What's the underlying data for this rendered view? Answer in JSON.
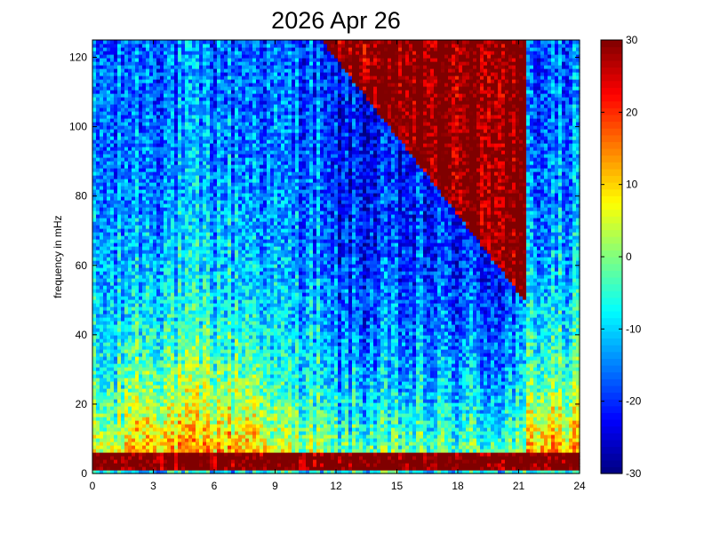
{
  "chart_data": {
    "type": "heatmap",
    "title": "2026 Apr 26",
    "ylabel": "frequency in mHz",
    "xlabel": "",
    "xlim": [
      0,
      24
    ],
    "ylim": [
      0,
      125
    ],
    "x_ticks": [
      "0",
      "3",
      "6",
      "9",
      "12",
      "15",
      "18",
      "21",
      "24"
    ],
    "y_ticks": [
      "0",
      "20",
      "40",
      "60",
      "80",
      "100",
      "120"
    ],
    "colorbar": {
      "range": [
        -30,
        30
      ],
      "ticks": [
        "-30",
        "-20",
        "-10",
        "0",
        "10",
        "20",
        "30"
      ],
      "colormap": "jet"
    },
    "grid": false
  }
}
